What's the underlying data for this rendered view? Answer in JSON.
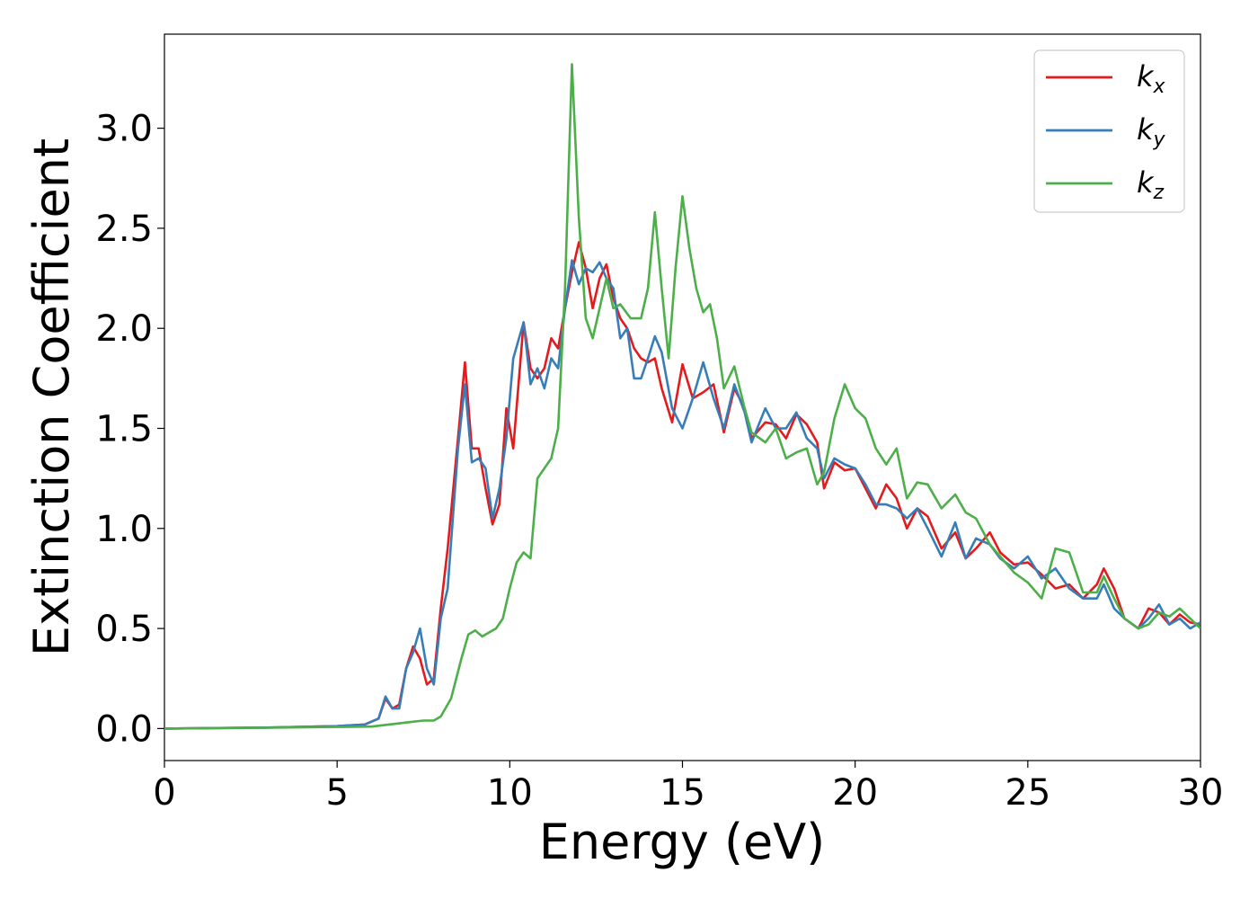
{
  "chart_data": {
    "type": "line",
    "title": "",
    "xlabel": "Energy (eV)",
    "ylabel": "Extinction Coefficient",
    "xlim": [
      0,
      30
    ],
    "ylim": [
      -0.16,
      3.47
    ],
    "xticks": [
      0,
      5,
      10,
      15,
      20,
      25,
      30
    ],
    "xtick_labels": [
      "0",
      "5",
      "10",
      "15",
      "20",
      "25",
      "30"
    ],
    "yticks": [
      0.0,
      0.5,
      1.0,
      1.5,
      2.0,
      2.5,
      3.0
    ],
    "ytick_labels": [
      "0.0",
      "0.5",
      "1.0",
      "1.5",
      "2.0",
      "2.5",
      "3.0"
    ],
    "grid": false,
    "legend_position": "top-right",
    "series": [
      {
        "name": "k_x",
        "label_base": "k",
        "label_sub": "x",
        "color": "#e41a1c",
        "points": [
          [
            0,
            0
          ],
          [
            3,
            0.005
          ],
          [
            5,
            0.012
          ],
          [
            5.8,
            0.02
          ],
          [
            6.2,
            0.05
          ],
          [
            6.4,
            0.15
          ],
          [
            6.6,
            0.1
          ],
          [
            6.8,
            0.12
          ],
          [
            7.0,
            0.3
          ],
          [
            7.2,
            0.41
          ],
          [
            7.4,
            0.35
          ],
          [
            7.6,
            0.22
          ],
          [
            7.8,
            0.25
          ],
          [
            8.0,
            0.6
          ],
          [
            8.2,
            0.9
          ],
          [
            8.5,
            1.45
          ],
          [
            8.7,
            1.83
          ],
          [
            8.9,
            1.4
          ],
          [
            9.1,
            1.4
          ],
          [
            9.3,
            1.2
          ],
          [
            9.5,
            1.02
          ],
          [
            9.7,
            1.12
          ],
          [
            9.9,
            1.6
          ],
          [
            10.1,
            1.4
          ],
          [
            10.4,
            2.03
          ],
          [
            10.6,
            1.8
          ],
          [
            10.8,
            1.75
          ],
          [
            11.0,
            1.8
          ],
          [
            11.2,
            1.95
          ],
          [
            11.4,
            1.9
          ],
          [
            11.6,
            2.1
          ],
          [
            11.8,
            2.28
          ],
          [
            12.0,
            2.43
          ],
          [
            12.2,
            2.3
          ],
          [
            12.4,
            2.1
          ],
          [
            12.6,
            2.25
          ],
          [
            12.8,
            2.32
          ],
          [
            13.0,
            2.15
          ],
          [
            13.2,
            2.05
          ],
          [
            13.4,
            2.0
          ],
          [
            13.6,
            1.9
          ],
          [
            13.8,
            1.85
          ],
          [
            14.0,
            1.83
          ],
          [
            14.2,
            1.85
          ],
          [
            14.4,
            1.7
          ],
          [
            14.7,
            1.53
          ],
          [
            15.0,
            1.82
          ],
          [
            15.3,
            1.65
          ],
          [
            15.6,
            1.68
          ],
          [
            15.9,
            1.72
          ],
          [
            16.2,
            1.48
          ],
          [
            16.5,
            1.7
          ],
          [
            16.8,
            1.6
          ],
          [
            17.0,
            1.45
          ],
          [
            17.4,
            1.53
          ],
          [
            17.7,
            1.52
          ],
          [
            18.0,
            1.45
          ],
          [
            18.3,
            1.57
          ],
          [
            18.6,
            1.52
          ],
          [
            18.9,
            1.43
          ],
          [
            19.1,
            1.2
          ],
          [
            19.4,
            1.33
          ],
          [
            19.7,
            1.29
          ],
          [
            20.0,
            1.3
          ],
          [
            20.3,
            1.2
          ],
          [
            20.6,
            1.1
          ],
          [
            20.9,
            1.22
          ],
          [
            21.2,
            1.15
          ],
          [
            21.5,
            1.0
          ],
          [
            21.8,
            1.1
          ],
          [
            22.1,
            1.06
          ],
          [
            22.5,
            0.9
          ],
          [
            22.9,
            0.98
          ],
          [
            23.2,
            0.85
          ],
          [
            23.5,
            0.9
          ],
          [
            23.9,
            0.98
          ],
          [
            24.2,
            0.88
          ],
          [
            24.6,
            0.82
          ],
          [
            25.0,
            0.83
          ],
          [
            25.4,
            0.77
          ],
          [
            25.8,
            0.7
          ],
          [
            26.2,
            0.72
          ],
          [
            26.6,
            0.65
          ],
          [
            27.0,
            0.72
          ],
          [
            27.2,
            0.8
          ],
          [
            27.5,
            0.7
          ],
          [
            27.8,
            0.55
          ],
          [
            28.2,
            0.5
          ],
          [
            28.5,
            0.6
          ],
          [
            28.8,
            0.58
          ],
          [
            29.1,
            0.52
          ],
          [
            29.4,
            0.57
          ],
          [
            29.7,
            0.53
          ],
          [
            30.0,
            0.52
          ]
        ]
      },
      {
        "name": "k_y",
        "label_base": "k",
        "label_sub": "y",
        "color": "#377eb8",
        "points": [
          [
            0,
            0
          ],
          [
            3,
            0.005
          ],
          [
            5,
            0.012
          ],
          [
            5.8,
            0.02
          ],
          [
            6.2,
            0.05
          ],
          [
            6.4,
            0.16
          ],
          [
            6.6,
            0.1
          ],
          [
            6.8,
            0.1
          ],
          [
            7.0,
            0.3
          ],
          [
            7.2,
            0.38
          ],
          [
            7.4,
            0.5
          ],
          [
            7.6,
            0.3
          ],
          [
            7.8,
            0.22
          ],
          [
            8.0,
            0.55
          ],
          [
            8.2,
            0.7
          ],
          [
            8.5,
            1.4
          ],
          [
            8.7,
            1.72
          ],
          [
            8.9,
            1.33
          ],
          [
            9.1,
            1.35
          ],
          [
            9.3,
            1.3
          ],
          [
            9.5,
            1.05
          ],
          [
            9.7,
            1.2
          ],
          [
            9.9,
            1.45
          ],
          [
            10.1,
            1.85
          ],
          [
            10.4,
            2.03
          ],
          [
            10.6,
            1.72
          ],
          [
            10.8,
            1.8
          ],
          [
            11.0,
            1.7
          ],
          [
            11.2,
            1.85
          ],
          [
            11.4,
            1.8
          ],
          [
            11.6,
            2.1
          ],
          [
            11.8,
            2.34
          ],
          [
            12.0,
            2.22
          ],
          [
            12.2,
            2.3
          ],
          [
            12.4,
            2.28
          ],
          [
            12.6,
            2.33
          ],
          [
            12.8,
            2.25
          ],
          [
            13.0,
            2.2
          ],
          [
            13.2,
            1.95
          ],
          [
            13.4,
            2.0
          ],
          [
            13.6,
            1.75
          ],
          [
            13.8,
            1.75
          ],
          [
            14.0,
            1.85
          ],
          [
            14.2,
            1.96
          ],
          [
            14.4,
            1.88
          ],
          [
            14.7,
            1.6
          ],
          [
            15.0,
            1.5
          ],
          [
            15.3,
            1.65
          ],
          [
            15.6,
            1.83
          ],
          [
            15.9,
            1.65
          ],
          [
            16.2,
            1.5
          ],
          [
            16.5,
            1.72
          ],
          [
            16.8,
            1.58
          ],
          [
            17.0,
            1.43
          ],
          [
            17.4,
            1.6
          ],
          [
            17.7,
            1.5
          ],
          [
            18.0,
            1.5
          ],
          [
            18.3,
            1.58
          ],
          [
            18.6,
            1.45
          ],
          [
            18.9,
            1.4
          ],
          [
            19.1,
            1.25
          ],
          [
            19.4,
            1.35
          ],
          [
            19.7,
            1.32
          ],
          [
            20.0,
            1.3
          ],
          [
            20.3,
            1.22
          ],
          [
            20.6,
            1.12
          ],
          [
            20.9,
            1.12
          ],
          [
            21.2,
            1.1
          ],
          [
            21.5,
            1.05
          ],
          [
            21.8,
            1.1
          ],
          [
            22.1,
            1.0
          ],
          [
            22.5,
            0.86
          ],
          [
            22.9,
            1.03
          ],
          [
            23.2,
            0.85
          ],
          [
            23.5,
            0.95
          ],
          [
            23.9,
            0.92
          ],
          [
            24.2,
            0.85
          ],
          [
            24.6,
            0.8
          ],
          [
            25.0,
            0.86
          ],
          [
            25.4,
            0.75
          ],
          [
            25.8,
            0.8
          ],
          [
            26.2,
            0.7
          ],
          [
            26.6,
            0.65
          ],
          [
            27.0,
            0.65
          ],
          [
            27.2,
            0.72
          ],
          [
            27.5,
            0.6
          ],
          [
            27.8,
            0.55
          ],
          [
            28.2,
            0.5
          ],
          [
            28.5,
            0.55
          ],
          [
            28.8,
            0.62
          ],
          [
            29.1,
            0.52
          ],
          [
            29.4,
            0.55
          ],
          [
            29.7,
            0.5
          ],
          [
            30.0,
            0.53
          ]
        ]
      },
      {
        "name": "k_z",
        "label_base": "k",
        "label_sub": "z",
        "color": "#4daf4a",
        "points": [
          [
            0,
            0
          ],
          [
            3,
            0.004
          ],
          [
            5,
            0.008
          ],
          [
            6,
            0.01
          ],
          [
            6.5,
            0.02
          ],
          [
            7.0,
            0.03
          ],
          [
            7.5,
            0.04
          ],
          [
            7.8,
            0.04
          ],
          [
            8.0,
            0.06
          ],
          [
            8.3,
            0.15
          ],
          [
            8.6,
            0.35
          ],
          [
            8.8,
            0.47
          ],
          [
            9.0,
            0.49
          ],
          [
            9.2,
            0.46
          ],
          [
            9.4,
            0.48
          ],
          [
            9.6,
            0.5
          ],
          [
            9.8,
            0.55
          ],
          [
            10.0,
            0.7
          ],
          [
            10.2,
            0.83
          ],
          [
            10.4,
            0.88
          ],
          [
            10.6,
            0.85
          ],
          [
            10.8,
            1.25
          ],
          [
            11.0,
            1.3
          ],
          [
            11.2,
            1.35
          ],
          [
            11.4,
            1.5
          ],
          [
            11.6,
            2.2
          ],
          [
            11.8,
            3.32
          ],
          [
            12.0,
            2.55
          ],
          [
            12.2,
            2.05
          ],
          [
            12.4,
            1.95
          ],
          [
            12.6,
            2.1
          ],
          [
            12.8,
            2.25
          ],
          [
            13.0,
            2.1
          ],
          [
            13.2,
            2.12
          ],
          [
            13.5,
            2.05
          ],
          [
            13.8,
            2.05
          ],
          [
            14.0,
            2.2
          ],
          [
            14.2,
            2.58
          ],
          [
            14.4,
            2.2
          ],
          [
            14.6,
            1.85
          ],
          [
            14.8,
            2.3
          ],
          [
            15.0,
            2.66
          ],
          [
            15.2,
            2.4
          ],
          [
            15.4,
            2.2
          ],
          [
            15.6,
            2.08
          ],
          [
            15.8,
            2.12
          ],
          [
            16.0,
            1.95
          ],
          [
            16.2,
            1.7
          ],
          [
            16.5,
            1.81
          ],
          [
            16.8,
            1.6
          ],
          [
            17.0,
            1.48
          ],
          [
            17.4,
            1.43
          ],
          [
            17.7,
            1.5
          ],
          [
            18.0,
            1.35
          ],
          [
            18.3,
            1.38
          ],
          [
            18.6,
            1.4
          ],
          [
            18.9,
            1.22
          ],
          [
            19.1,
            1.28
          ],
          [
            19.4,
            1.55
          ],
          [
            19.7,
            1.72
          ],
          [
            20.0,
            1.6
          ],
          [
            20.3,
            1.55
          ],
          [
            20.6,
            1.4
          ],
          [
            20.9,
            1.32
          ],
          [
            21.2,
            1.4
          ],
          [
            21.5,
            1.15
          ],
          [
            21.8,
            1.23
          ],
          [
            22.1,
            1.22
          ],
          [
            22.5,
            1.1
          ],
          [
            22.9,
            1.17
          ],
          [
            23.2,
            1.08
          ],
          [
            23.5,
            1.05
          ],
          [
            23.9,
            0.92
          ],
          [
            24.2,
            0.86
          ],
          [
            24.6,
            0.78
          ],
          [
            25.0,
            0.73
          ],
          [
            25.4,
            0.65
          ],
          [
            25.8,
            0.9
          ],
          [
            26.2,
            0.88
          ],
          [
            26.6,
            0.68
          ],
          [
            27.0,
            0.68
          ],
          [
            27.2,
            0.76
          ],
          [
            27.5,
            0.65
          ],
          [
            27.8,
            0.55
          ],
          [
            28.2,
            0.5
          ],
          [
            28.5,
            0.52
          ],
          [
            28.8,
            0.58
          ],
          [
            29.1,
            0.56
          ],
          [
            29.4,
            0.6
          ],
          [
            29.7,
            0.55
          ],
          [
            30.0,
            0.5
          ]
        ]
      }
    ]
  }
}
